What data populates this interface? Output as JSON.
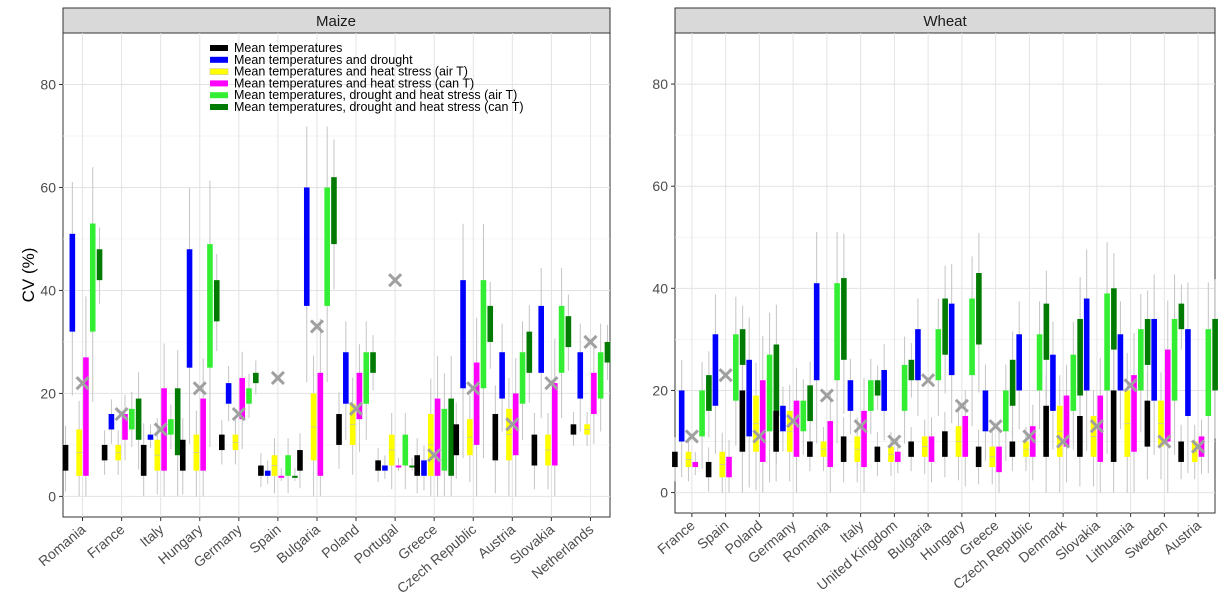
{
  "ylabel": "CV (%)",
  "legend": {
    "position": "top-center",
    "entries": [
      {
        "label": "Mean temperatures",
        "color": "#000000"
      },
      {
        "label": "Mean temperatures and drought",
        "color": "#0000ff"
      },
      {
        "label": "Mean temperatures and heat stress (air T)",
        "color": "#ffff00"
      },
      {
        "label": "Mean temperatures and heat stress (can T)",
        "color": "#ff00ff"
      },
      {
        "label": "Mean temperatures, drought and heat stress (air T)",
        "color": "#33ee33"
      },
      {
        "label": "Mean temperatures, drought and heat stress (can T)",
        "color": "#007a00"
      }
    ]
  },
  "marker": {
    "shape": "x",
    "color": "#a0a0a0"
  },
  "chart_data": [
    {
      "type": "boxplot",
      "title": "Maize",
      "xlabel": "",
      "ylabel": "CV (%)",
      "ylim": [
        -4,
        90
      ],
      "yticks": [
        0,
        20,
        40,
        60,
        80
      ],
      "grid": true,
      "legend": "top-center",
      "categories": [
        "Romania",
        "France",
        "Italy",
        "Hungary",
        "Germany",
        "Spain",
        "Bulgaria",
        "Poland",
        "Portugal",
        "Greece",
        "Czech Republic",
        "Austria",
        "Slovakia",
        "Netherlands"
      ],
      "observed": [
        22,
        16,
        13,
        21,
        16,
        23,
        33,
        17,
        42,
        8,
        21,
        14,
        22,
        30
      ],
      "boxes": [
        [
          [
            5,
            10
          ],
          [
            32,
            51
          ],
          [
            4,
            13
          ],
          [
            4,
            27
          ],
          [
            32,
            53
          ],
          [
            42,
            48
          ]
        ],
        [
          [
            7,
            10
          ],
          [
            13,
            16
          ],
          [
            7,
            10
          ],
          [
            11,
            16
          ],
          [
            13,
            17
          ],
          [
            11,
            19
          ]
        ],
        [
          [
            4,
            10
          ],
          [
            11,
            12
          ],
          [
            5,
            11
          ],
          [
            5,
            21
          ],
          [
            12,
            15
          ],
          [
            8,
            21
          ]
        ],
        [
          [
            5,
            11
          ],
          [
            25,
            48
          ],
          [
            5,
            12
          ],
          [
            5,
            19
          ],
          [
            25,
            49
          ],
          [
            34,
            42
          ]
        ],
        [
          [
            9,
            12
          ],
          [
            18,
            22
          ],
          [
            9,
            12
          ],
          [
            15,
            23
          ],
          [
            18,
            21
          ],
          [
            22,
            24
          ]
        ],
        [
          [
            4,
            6
          ],
          [
            4,
            5
          ],
          [
            4,
            8
          ],
          [
            4,
            4
          ],
          [
            4,
            8
          ],
          [
            4,
            4
          ]
        ],
        [
          [
            5,
            9
          ],
          [
            37,
            60
          ],
          [
            7,
            20
          ],
          [
            4,
            24
          ],
          [
            37,
            60
          ],
          [
            49,
            62
          ]
        ],
        [
          [
            10,
            16
          ],
          [
            18,
            28
          ],
          [
            10,
            18
          ],
          [
            15,
            24
          ],
          [
            18,
            28
          ],
          [
            24,
            28
          ]
        ],
        [
          [
            5,
            7
          ],
          [
            5,
            6
          ],
          [
            6,
            12
          ],
          [
            6,
            6
          ],
          [
            6,
            12
          ],
          [
            6,
            6
          ]
        ],
        [
          [
            4,
            8
          ],
          [
            4,
            7
          ],
          [
            4,
            16
          ],
          [
            4,
            19
          ],
          [
            5,
            17
          ],
          [
            4,
            19
          ]
        ],
        [
          [
            8,
            14
          ],
          [
            21,
            42
          ],
          [
            8,
            15
          ],
          [
            10,
            26
          ],
          [
            21,
            42
          ],
          [
            30,
            37
          ]
        ],
        [
          [
            7,
            16
          ],
          [
            19,
            28
          ],
          [
            7,
            17
          ],
          [
            8,
            20
          ],
          [
            18,
            28
          ],
          [
            24,
            32
          ]
        ],
        [
          [
            6,
            12
          ],
          [
            24,
            37
          ],
          [
            6,
            12
          ],
          [
            6,
            22
          ],
          [
            24,
            37
          ],
          [
            29,
            35
          ]
        ],
        [
          [
            12,
            14
          ],
          [
            19,
            28
          ],
          [
            12,
            14
          ],
          [
            16,
            24
          ],
          [
            19,
            28
          ],
          [
            26,
            30
          ]
        ]
      ]
    },
    {
      "type": "boxplot",
      "title": "Wheat",
      "xlabel": "",
      "ylabel": "",
      "ylim": [
        -4,
        90
      ],
      "yticks": [
        0,
        20,
        40,
        60,
        80
      ],
      "grid": true,
      "legend": "none",
      "categories": [
        "France",
        "Spain",
        "Poland",
        "Germany",
        "Romania",
        "Italy",
        "United Kingdom",
        "Bulgaria",
        "Hungary",
        "Greece",
        "Czech Republic",
        "Denmark",
        "Slovakia",
        "Lithuania",
        "Sweden",
        "Austria"
      ],
      "observed": [
        11,
        23,
        11,
        14,
        19,
        13,
        10,
        22,
        17,
        13,
        11,
        10,
        13,
        21,
        10,
        9
      ],
      "boxes": [
        [
          [
            5,
            8
          ],
          [
            10,
            20
          ],
          [
            5,
            8
          ],
          [
            5,
            6
          ],
          [
            11,
            20
          ],
          [
            16,
            23
          ]
        ],
        [
          [
            3,
            6
          ],
          [
            17,
            31
          ],
          [
            3,
            8
          ],
          [
            3,
            7
          ],
          [
            18,
            31
          ],
          [
            25,
            32
          ]
        ],
        [
          [
            8,
            20
          ],
          [
            11,
            26
          ],
          [
            8,
            19
          ],
          [
            6,
            22
          ],
          [
            12,
            27
          ],
          [
            15,
            29
          ]
        ],
        [
          [
            8,
            16
          ],
          [
            12,
            17
          ],
          [
            8,
            16
          ],
          [
            7,
            18
          ],
          [
            12,
            18
          ],
          [
            14,
            21
          ]
        ],
        [
          [
            7,
            10
          ],
          [
            22,
            41
          ],
          [
            7,
            10
          ],
          [
            5,
            14
          ],
          [
            22,
            41
          ],
          [
            26,
            42
          ]
        ],
        [
          [
            6,
            11
          ],
          [
            16,
            22
          ],
          [
            6,
            11
          ],
          [
            5,
            16
          ],
          [
            16,
            22
          ],
          [
            19,
            22
          ]
        ],
        [
          [
            6,
            9
          ],
          [
            16,
            24
          ],
          [
            6,
            9
          ],
          [
            6,
            8
          ],
          [
            16,
            25
          ],
          [
            22,
            26
          ]
        ],
        [
          [
            7,
            10
          ],
          [
            22,
            32
          ],
          [
            7,
            11
          ],
          [
            6,
            11
          ],
          [
            22,
            32
          ],
          [
            27,
            38
          ]
        ],
        [
          [
            7,
            12
          ],
          [
            23,
            37
          ],
          [
            7,
            13
          ],
          [
            7,
            15
          ],
          [
            23,
            38
          ],
          [
            29,
            43
          ]
        ],
        [
          [
            5,
            9
          ],
          [
            12,
            20
          ],
          [
            5,
            9
          ],
          [
            4,
            9
          ],
          [
            12,
            20
          ],
          [
            17,
            26
          ]
        ],
        [
          [
            7,
            10
          ],
          [
            20,
            31
          ],
          [
            7,
            10
          ],
          [
            7,
            13
          ],
          [
            20,
            31
          ],
          [
            26,
            37
          ]
        ],
        [
          [
            7,
            17
          ],
          [
            16,
            27
          ],
          [
            7,
            17
          ],
          [
            9,
            19
          ],
          [
            16,
            27
          ],
          [
            19,
            34
          ]
        ],
        [
          [
            7,
            15
          ],
          [
            20,
            38
          ],
          [
            7,
            15
          ],
          [
            6,
            19
          ],
          [
            20,
            39
          ],
          [
            28,
            40
          ]
        ],
        [
          [
            6,
            20
          ],
          [
            20,
            31
          ],
          [
            7,
            20
          ],
          [
            8,
            23
          ],
          [
            20,
            32
          ],
          [
            25,
            34
          ]
        ],
        [
          [
            9,
            18
          ],
          [
            18,
            34
          ],
          [
            9,
            18
          ],
          [
            10,
            28
          ],
          [
            18,
            34
          ],
          [
            32,
            37
          ]
        ],
        [
          [
            6,
            10
          ],
          [
            15,
            32
          ],
          [
            6,
            10
          ],
          [
            7,
            11
          ],
          [
            15,
            32
          ],
          [
            20,
            34
          ]
        ]
      ]
    }
  ]
}
